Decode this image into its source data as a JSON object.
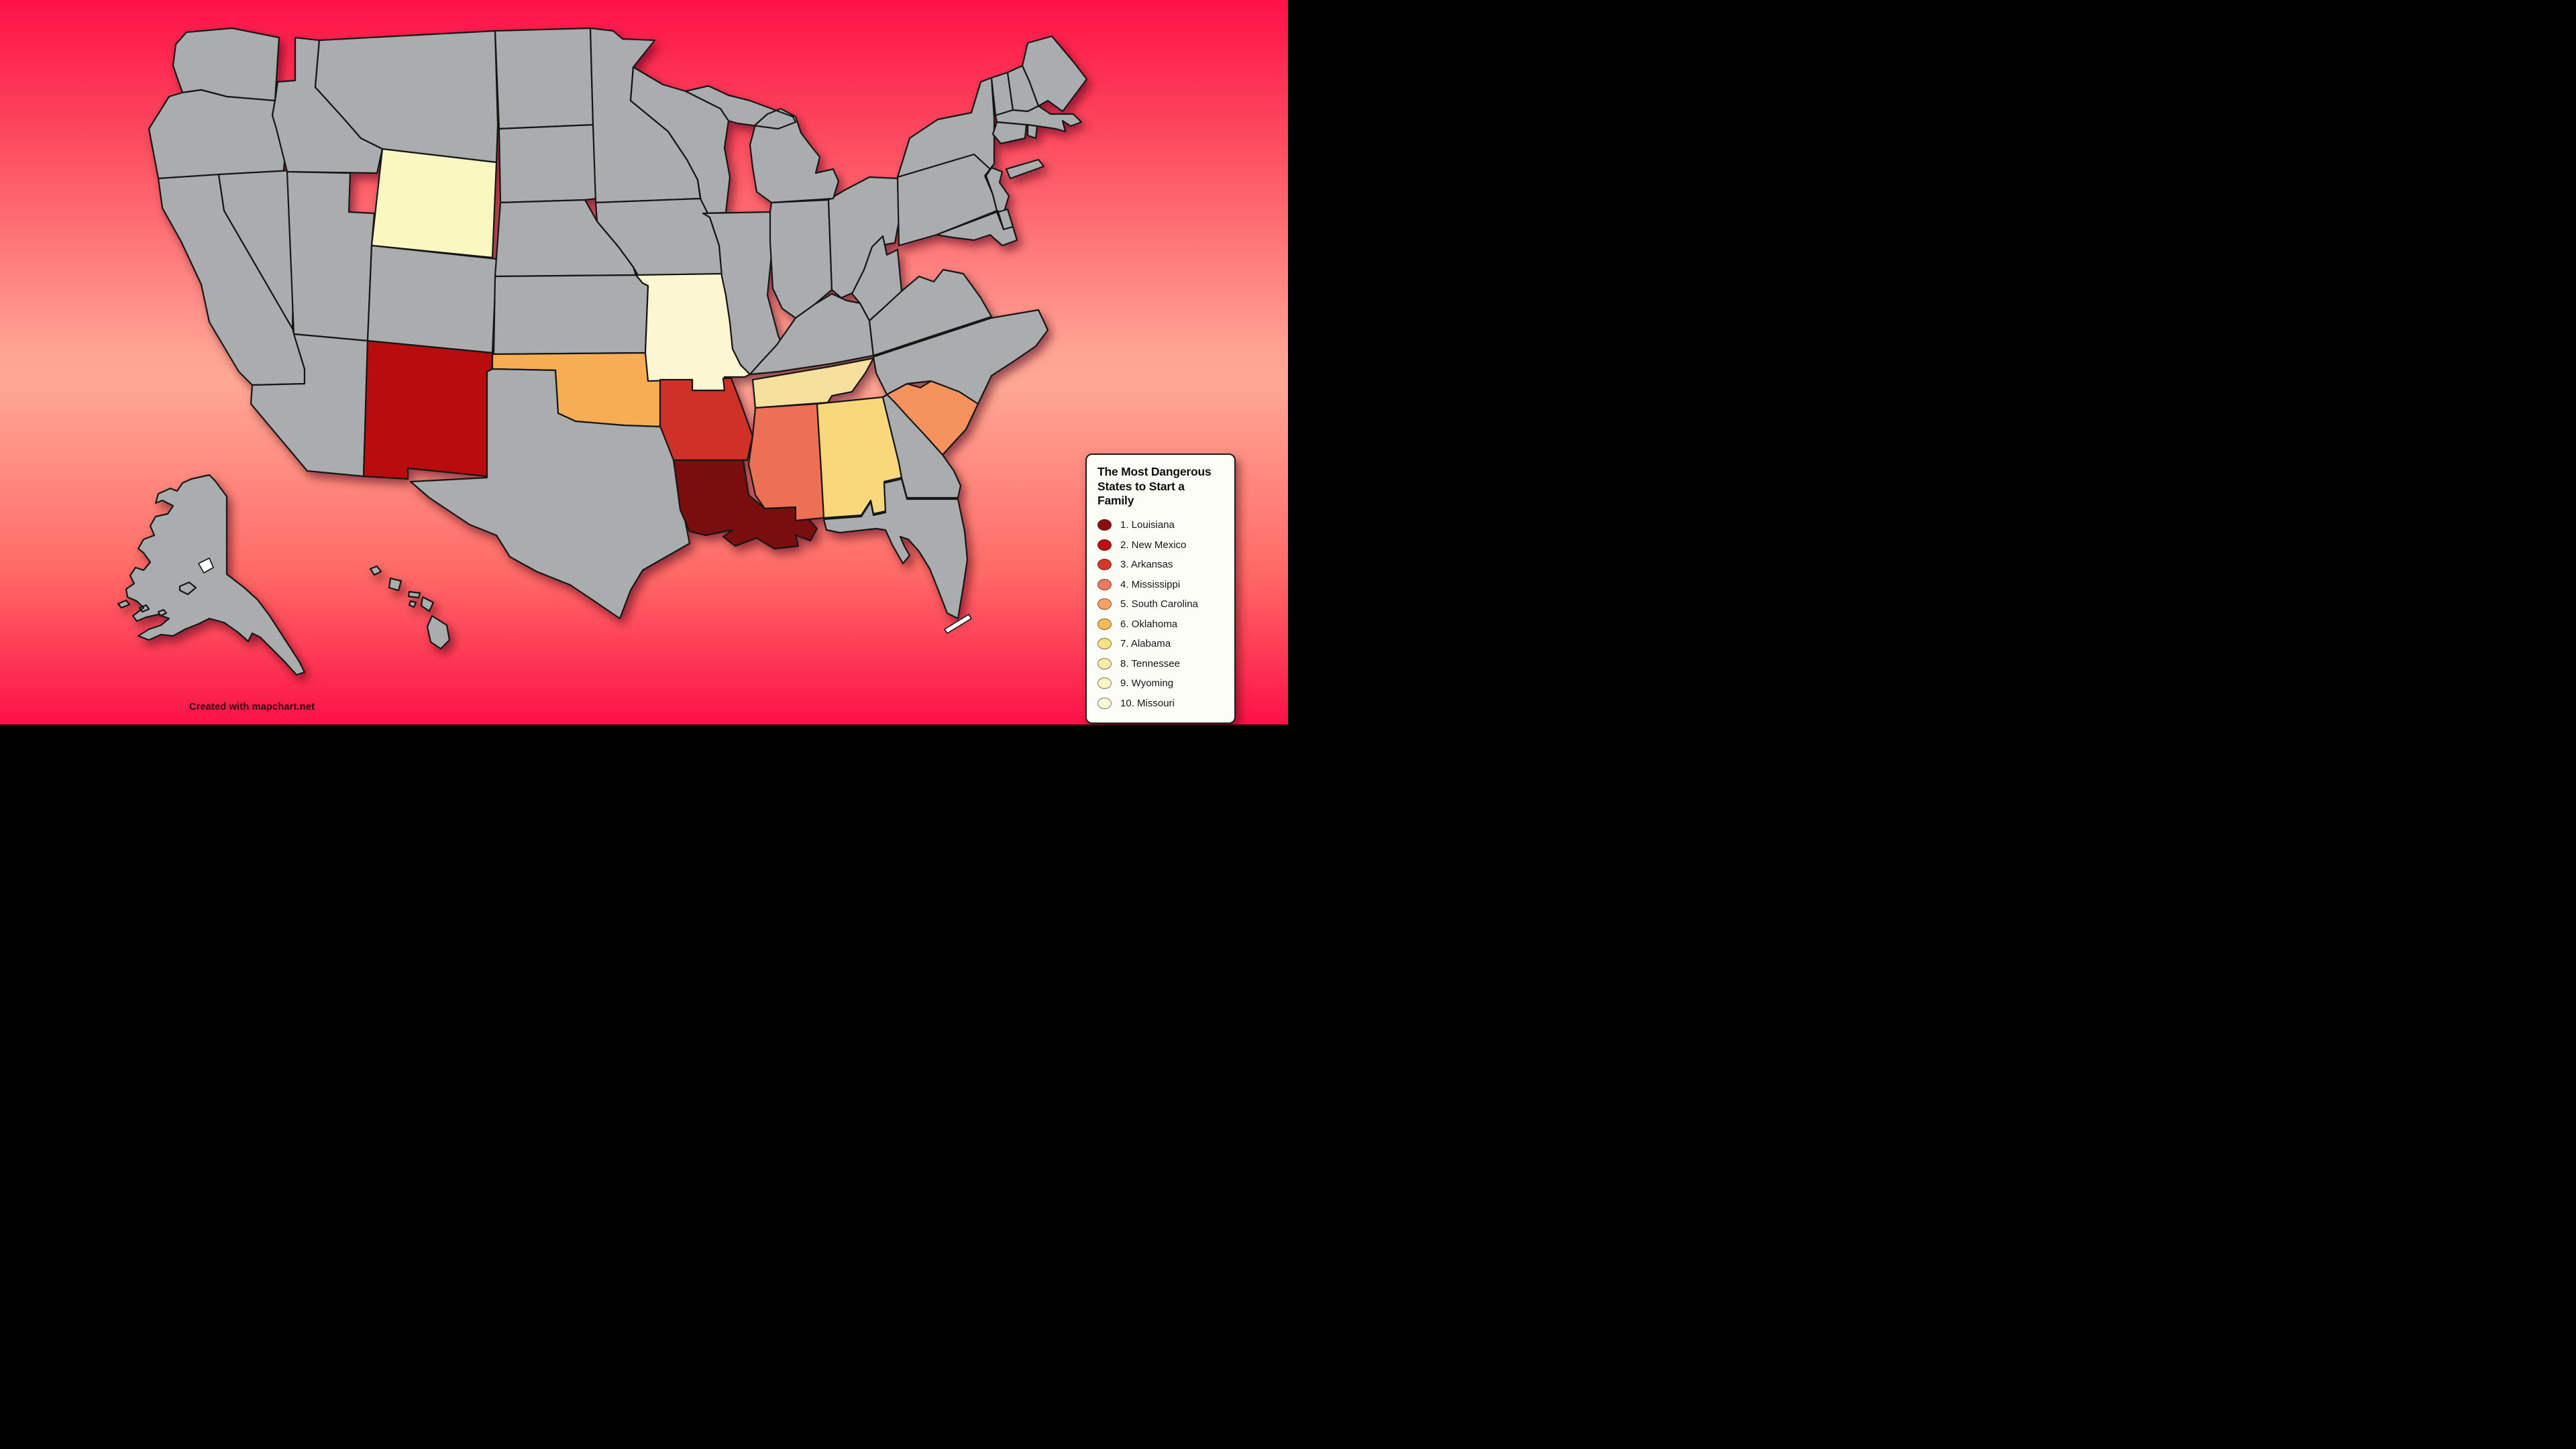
{
  "page": {
    "background_gradient": [
      "#fe1147",
      "#fd4a5e",
      "#ffa292",
      "#ffa795",
      "#ff6a66",
      "#fe1148"
    ]
  },
  "legend": {
    "title": "The Most Dangerous States to Start a Family",
    "items": [
      {
        "label": "1. Louisiana",
        "state": "louisiana",
        "color": "#8a0f0e"
      },
      {
        "label": "2. New Mexico",
        "state": "new-mexico",
        "color": "#bd0f13"
      },
      {
        "label": "3. Arkansas",
        "state": "arkansas",
        "color": "#d13a2b"
      },
      {
        "label": "4. Mississippi",
        "state": "mississippi",
        "color": "#ea7a60"
      },
      {
        "label": "5. South Carolina",
        "state": "south-carolina",
        "color": "#f7a066"
      },
      {
        "label": "6. Oklahoma",
        "state": "oklahoma",
        "color": "#f8bb58"
      },
      {
        "label": "7. Alabama",
        "state": "alabama",
        "color": "#fbdf84"
      },
      {
        "label": "8. Tennessee",
        "state": "tennessee",
        "color": "#f9edad"
      },
      {
        "label": "9. Wyoming",
        "state": "wyoming",
        "color": "#f9f7c3"
      },
      {
        "label": "10. Missouri",
        "state": "missouri",
        "color": "#fbfad8"
      }
    ]
  },
  "map": {
    "default_fill": "#a9adad",
    "border_color": "#141414",
    "water_detail_color": "#ffffff",
    "highlighted_states": {
      "louisiana": "#7a0c10",
      "new-mexico": "#b80d10",
      "arkansas": "#ce3226",
      "mississippi": "#ed6f55",
      "south-carolina": "#f4935c",
      "oklahoma": "#f6ad52",
      "alabama": "#f9d87b",
      "tennessee": "#f5e09e",
      "wyoming": "#fbf7c0",
      "missouri": "#fcf7d0"
    }
  },
  "attribution": {
    "text": "Created with mapchart.net"
  }
}
